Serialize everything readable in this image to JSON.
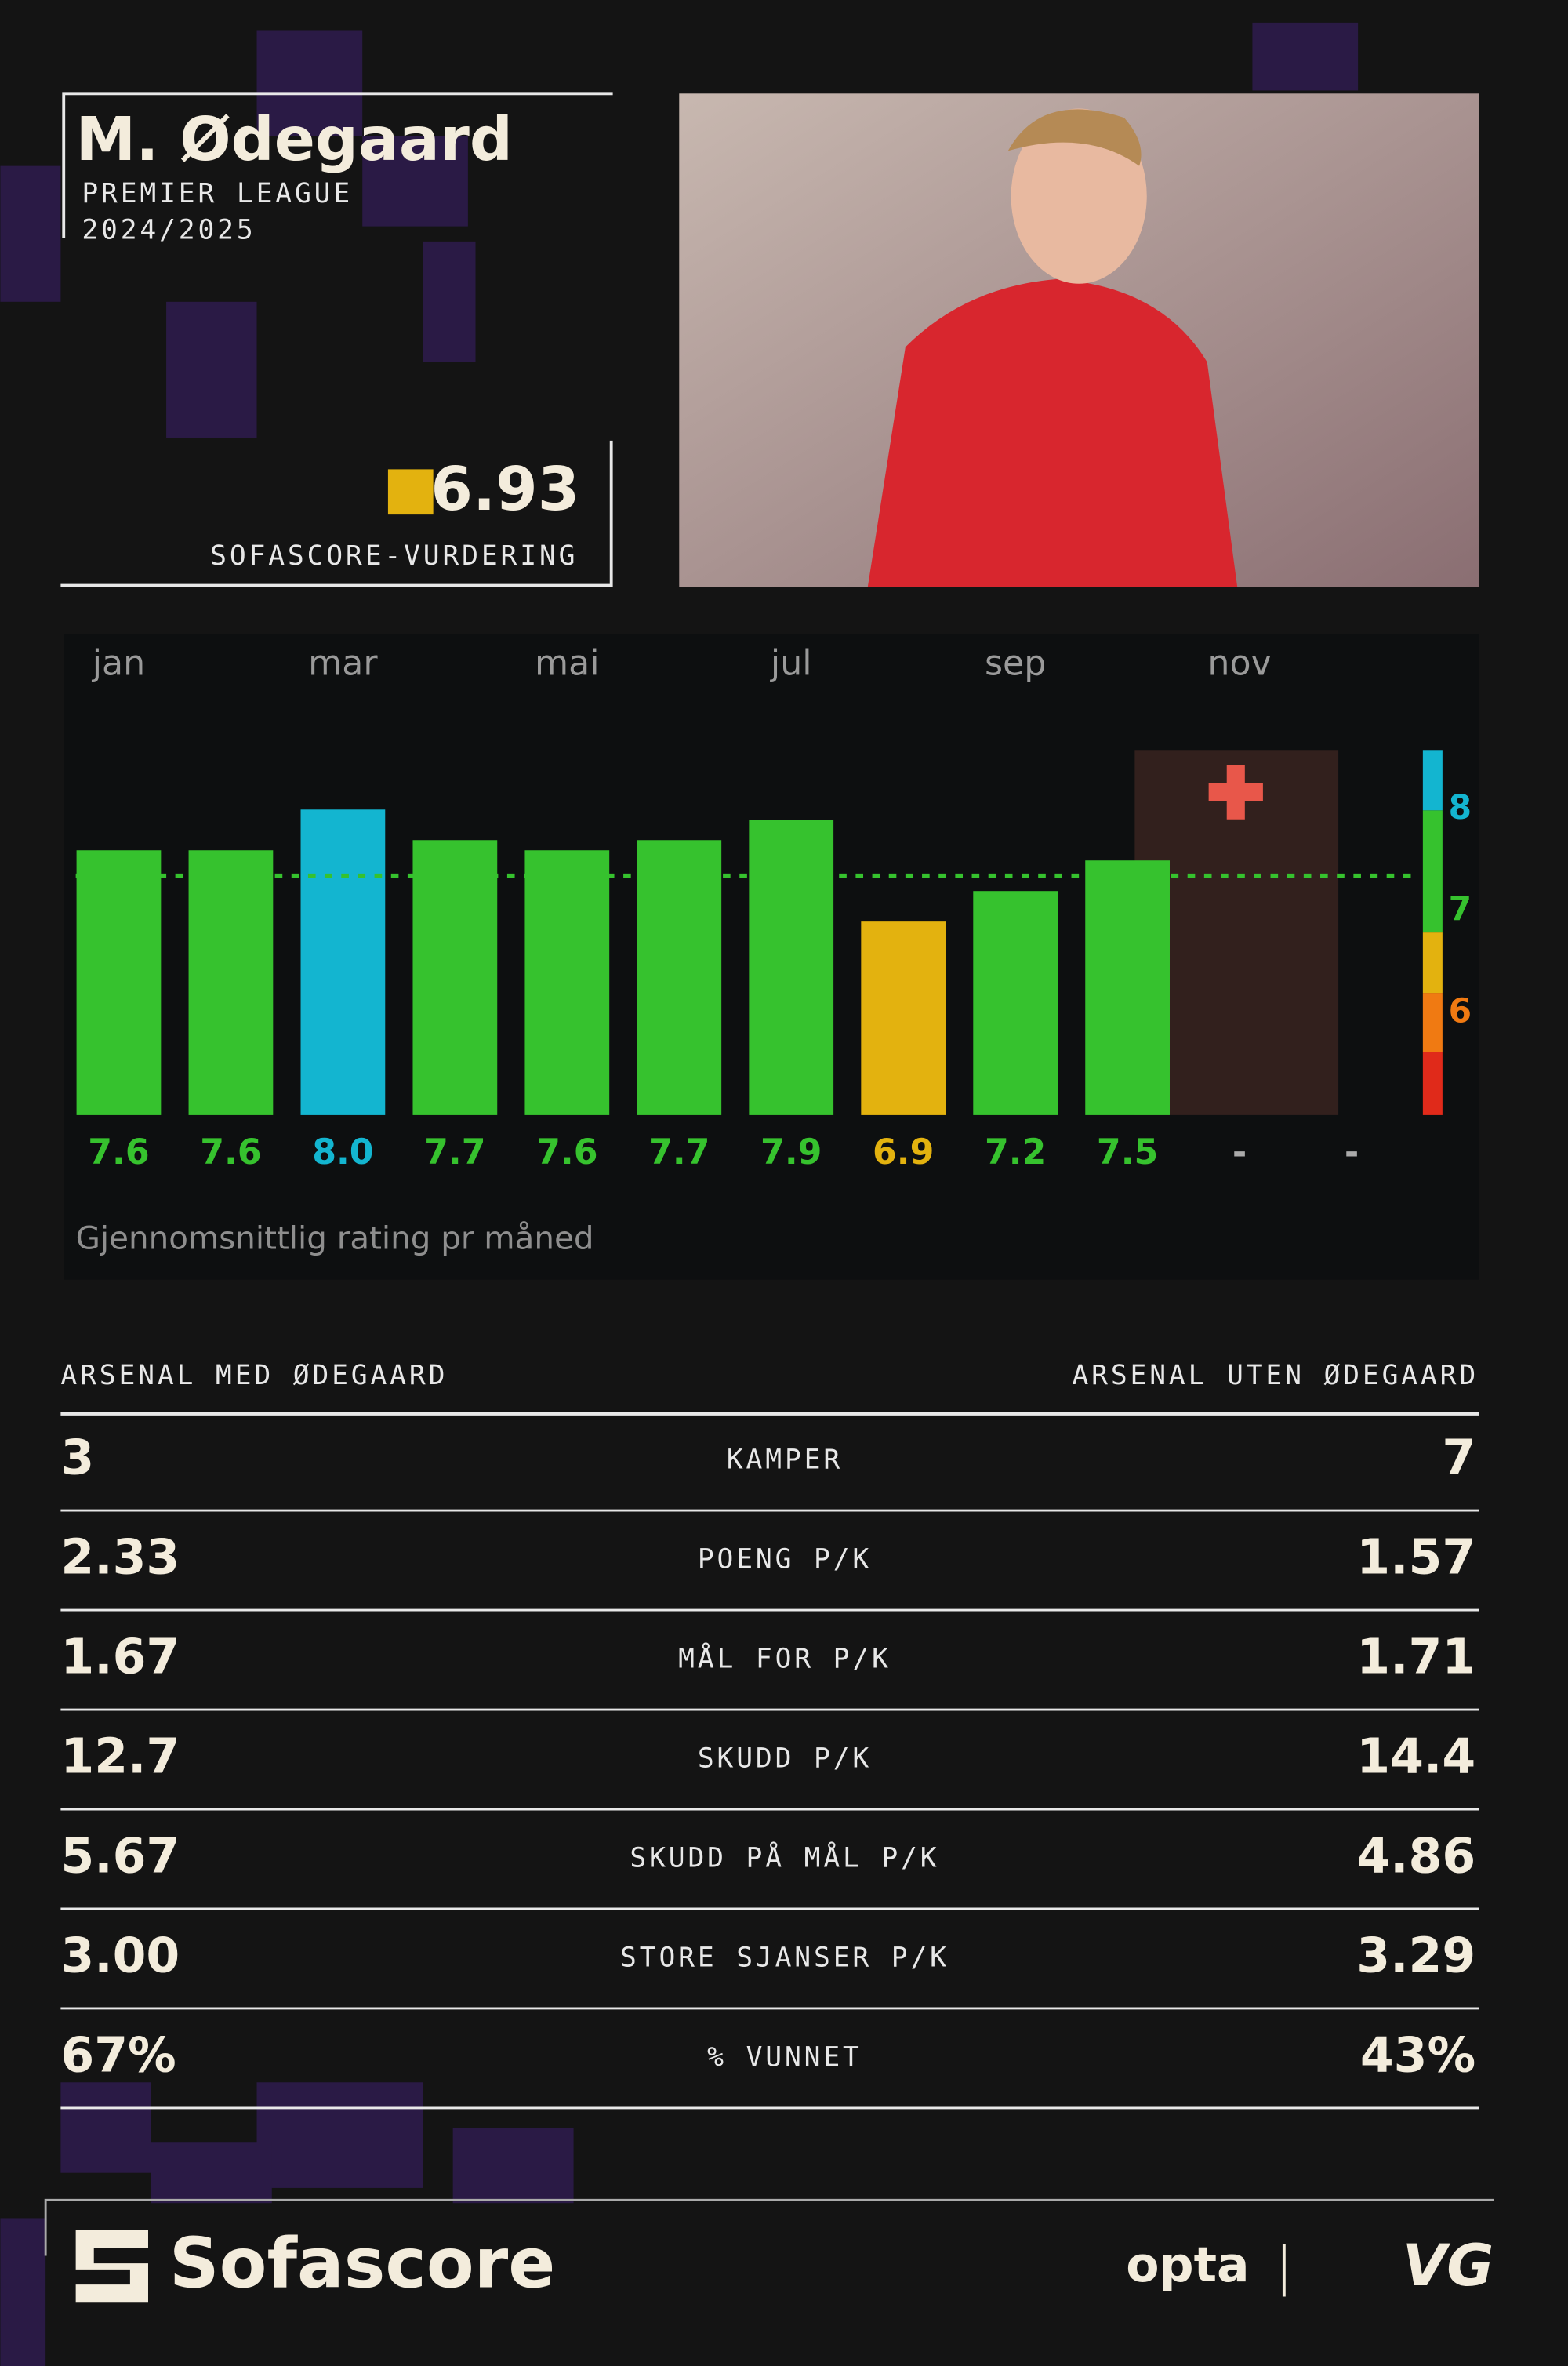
{
  "header": {
    "name": "M. Ødegaard",
    "league": "PREMIER LEAGUE",
    "season": "2024/2025",
    "rating": "6.93",
    "rating_label": "SOFASCORE-VURDERING"
  },
  "chart_data": {
    "type": "bar",
    "categories": [
      "jan",
      null,
      "mar",
      null,
      "mai",
      null,
      "jul",
      null,
      "sep",
      null,
      "nov",
      null
    ],
    "values": [
      7.6,
      7.6,
      8.0,
      7.7,
      7.6,
      7.7,
      7.9,
      6.9,
      7.2,
      7.5,
      null,
      null
    ],
    "value_labels": [
      "7.6",
      "7.6",
      "8.0",
      "7.7",
      "7.6",
      "7.7",
      "7.9",
      "6.9",
      "7.2",
      "7.5",
      "-",
      "-"
    ],
    "colors": [
      "#36c22e",
      "#36c22e",
      "#13b5d0",
      "#36c22e",
      "#36c22e",
      "#36c22e",
      "#36c22e",
      "#e3b20f",
      "#36c22e",
      "#36c22e",
      "#aaaaaa",
      "#aaaaaa"
    ],
    "ylim": [
      5,
      8.6
    ],
    "yticks": [
      6,
      7,
      8
    ],
    "ytick_colors": [
      "#f07a12",
      "#36c22e",
      "#13b5d0"
    ],
    "average": 7.35,
    "caption": "Gjennomsnittlig rating pr måned"
  },
  "comparison": {
    "left_title": "ARSENAL MED ØDEGAARD",
    "right_title": "ARSENAL UTEN ØDEGAARD",
    "rows": [
      {
        "left": "3",
        "label": "KAMPER",
        "right": "7"
      },
      {
        "left": "2.33",
        "label": "POENG P/K",
        "right": "1.57"
      },
      {
        "left": "1.67",
        "label": "MÅL FOR P/K",
        "right": "1.71"
      },
      {
        "left": "12.7",
        "label": "SKUDD P/K",
        "right": "14.4"
      },
      {
        "left": "5.67",
        "label": "SKUDD PÅ MÅL P/K",
        "right": "4.86"
      },
      {
        "left": "3.00",
        "label": "STORE SJANSER P/K",
        "right": "3.29"
      },
      {
        "left": "67%",
        "label": "% VUNNET",
        "right": "43%"
      }
    ]
  },
  "footer": {
    "brand": "Sofascore",
    "partners": [
      "opta",
      "VG"
    ]
  }
}
